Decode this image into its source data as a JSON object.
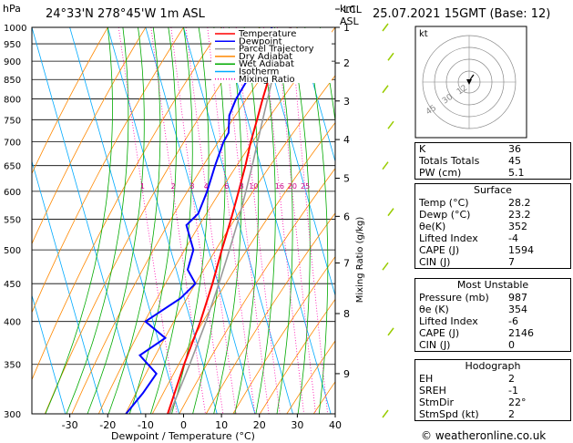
{
  "header": {
    "hpa_label": "hPa",
    "location": "24°33'N  278°45'W  1m  ASL",
    "km_label": "km",
    "asl_label": "ASL",
    "datetime": "25.07.2021  15GMT  (Base: 12)"
  },
  "legend": [
    {
      "label": "Temperature",
      "color": "#ff0000",
      "style": "solid"
    },
    {
      "label": "Dewpoint",
      "color": "#0000ff",
      "style": "solid"
    },
    {
      "label": "Parcel Trajectory",
      "color": "#999999",
      "style": "solid"
    },
    {
      "label": "Dry Adiabat",
      "color": "#ff8800",
      "style": "solid"
    },
    {
      "label": "Wet Adiabat",
      "color": "#00aa00",
      "style": "solid"
    },
    {
      "label": "Isotherm",
      "color": "#00aaff",
      "style": "solid"
    },
    {
      "label": "Mixing Ratio",
      "color": "#ff00aa",
      "style": "dotted"
    }
  ],
  "chart_data": {
    "type": "line",
    "xlabel": "Dewpoint / Temperature (°C)",
    "right_axis_label": "Mixing Ratio (g/kg)",
    "xticks": [
      -30,
      -20,
      -10,
      0,
      10,
      20,
      30,
      40
    ],
    "xlim": [
      -40,
      40
    ],
    "pressure_levels": [
      300,
      350,
      400,
      450,
      500,
      550,
      600,
      650,
      700,
      750,
      800,
      850,
      900,
      950,
      1000
    ],
    "ylim": [
      1000,
      300
    ],
    "km_labels": [
      {
        "label": "9",
        "p": 340
      },
      {
        "label": "8",
        "p": 410
      },
      {
        "label": "7",
        "p": 480
      },
      {
        "label": "6",
        "p": 555
      },
      {
        "label": "5",
        "p": 625
      },
      {
        "label": "4",
        "p": 705
      },
      {
        "label": "3",
        "p": 795
      },
      {
        "label": "2",
        "p": 895
      },
      {
        "label": "1",
        "p": 1000
      },
      {
        "label": "LCL",
        "p": 1000
      }
    ],
    "mixing_ratio_labels": [
      "1",
      "2",
      "3",
      "4",
      "6",
      "8",
      "10",
      "16",
      "20",
      "25"
    ],
    "series": [
      {
        "name": "Temperature",
        "color": "#ff0000",
        "points": [
          [
            1000,
            28.2
          ],
          [
            950,
            24.5
          ],
          [
            900,
            21.5
          ],
          [
            850,
            18.5
          ],
          [
            800,
            15.5
          ],
          [
            750,
            12.5
          ],
          [
            700,
            9.2
          ],
          [
            650,
            6.0
          ],
          [
            600,
            2.3
          ],
          [
            550,
            -1.8
          ],
          [
            500,
            -6.5
          ],
          [
            450,
            -11.5
          ],
          [
            400,
            -17.5
          ],
          [
            350,
            -25.0
          ],
          [
            300,
            -33.0
          ]
        ]
      },
      {
        "name": "Dewpoint",
        "color": "#0000ff",
        "points": [
          [
            1000,
            23.2
          ],
          [
            970,
            22.8
          ],
          [
            950,
            20.5
          ],
          [
            920,
            14.0
          ],
          [
            900,
            15.0
          ],
          [
            850,
            13.0
          ],
          [
            800,
            8.5
          ],
          [
            760,
            5.5
          ],
          [
            720,
            4.0
          ],
          [
            700,
            2.0
          ],
          [
            650,
            -2.0
          ],
          [
            600,
            -6.0
          ],
          [
            560,
            -10.0
          ],
          [
            540,
            -14.0
          ],
          [
            500,
            -14.0
          ],
          [
            470,
            -17.0
          ],
          [
            450,
            -16.0
          ],
          [
            430,
            -21.0
          ],
          [
            400,
            -32.0
          ],
          [
            380,
            -28.0
          ],
          [
            360,
            -36.0
          ],
          [
            340,
            -33.0
          ],
          [
            320,
            -38.0
          ],
          [
            300,
            -44.0
          ]
        ]
      },
      {
        "name": "Parcel Trajectory",
        "color": "#999999",
        "points": [
          [
            1000,
            28.2
          ],
          [
            960,
            24.8
          ],
          [
            900,
            22.0
          ],
          [
            850,
            19.5
          ],
          [
            800,
            16.8
          ],
          [
            750,
            14.0
          ],
          [
            700,
            11.0
          ],
          [
            650,
            7.8
          ],
          [
            600,
            4.2
          ],
          [
            550,
            0.2
          ],
          [
            500,
            -4.5
          ],
          [
            450,
            -9.8
          ],
          [
            400,
            -16.0
          ],
          [
            350,
            -23.5
          ],
          [
            300,
            -32.5
          ]
        ]
      }
    ]
  },
  "hodograph": {
    "label": "kt",
    "ring_labels": [
      "12",
      "30",
      "45"
    ]
  },
  "indices": [
    {
      "label": "K",
      "value": "36"
    },
    {
      "label": "Totals Totals",
      "value": "45"
    },
    {
      "label": "PW (cm)",
      "value": "5.1"
    }
  ],
  "surface": {
    "title": "Surface",
    "rows": [
      {
        "label": "Temp (°C)",
        "value": "28.2"
      },
      {
        "label": "Dewp (°C)",
        "value": "23.2"
      },
      {
        "label": "θe(K)",
        "value": "352"
      },
      {
        "label": "Lifted Index",
        "value": "-4"
      },
      {
        "label": "CAPE (J)",
        "value": "1594"
      },
      {
        "label": "CIN (J)",
        "value": "7"
      }
    ]
  },
  "most_unstable": {
    "title": "Most Unstable",
    "rows": [
      {
        "label": "Pressure (mb)",
        "value": "987"
      },
      {
        "label": "θe (K)",
        "value": "354"
      },
      {
        "label": "Lifted Index",
        "value": "-6"
      },
      {
        "label": "CAPE (J)",
        "value": "2146"
      },
      {
        "label": "CIN (J)",
        "value": "0"
      }
    ]
  },
  "hodograph_stats": {
    "title": "Hodograph",
    "rows": [
      {
        "label": "EH",
        "value": "2"
      },
      {
        "label": "SREH",
        "value": "-1"
      },
      {
        "label": "StmDir",
        "value": "22°"
      },
      {
        "label": "StmSpd (kt)",
        "value": "2"
      }
    ]
  },
  "footer": {
    "copyright": "© weatheronline.co.uk"
  }
}
